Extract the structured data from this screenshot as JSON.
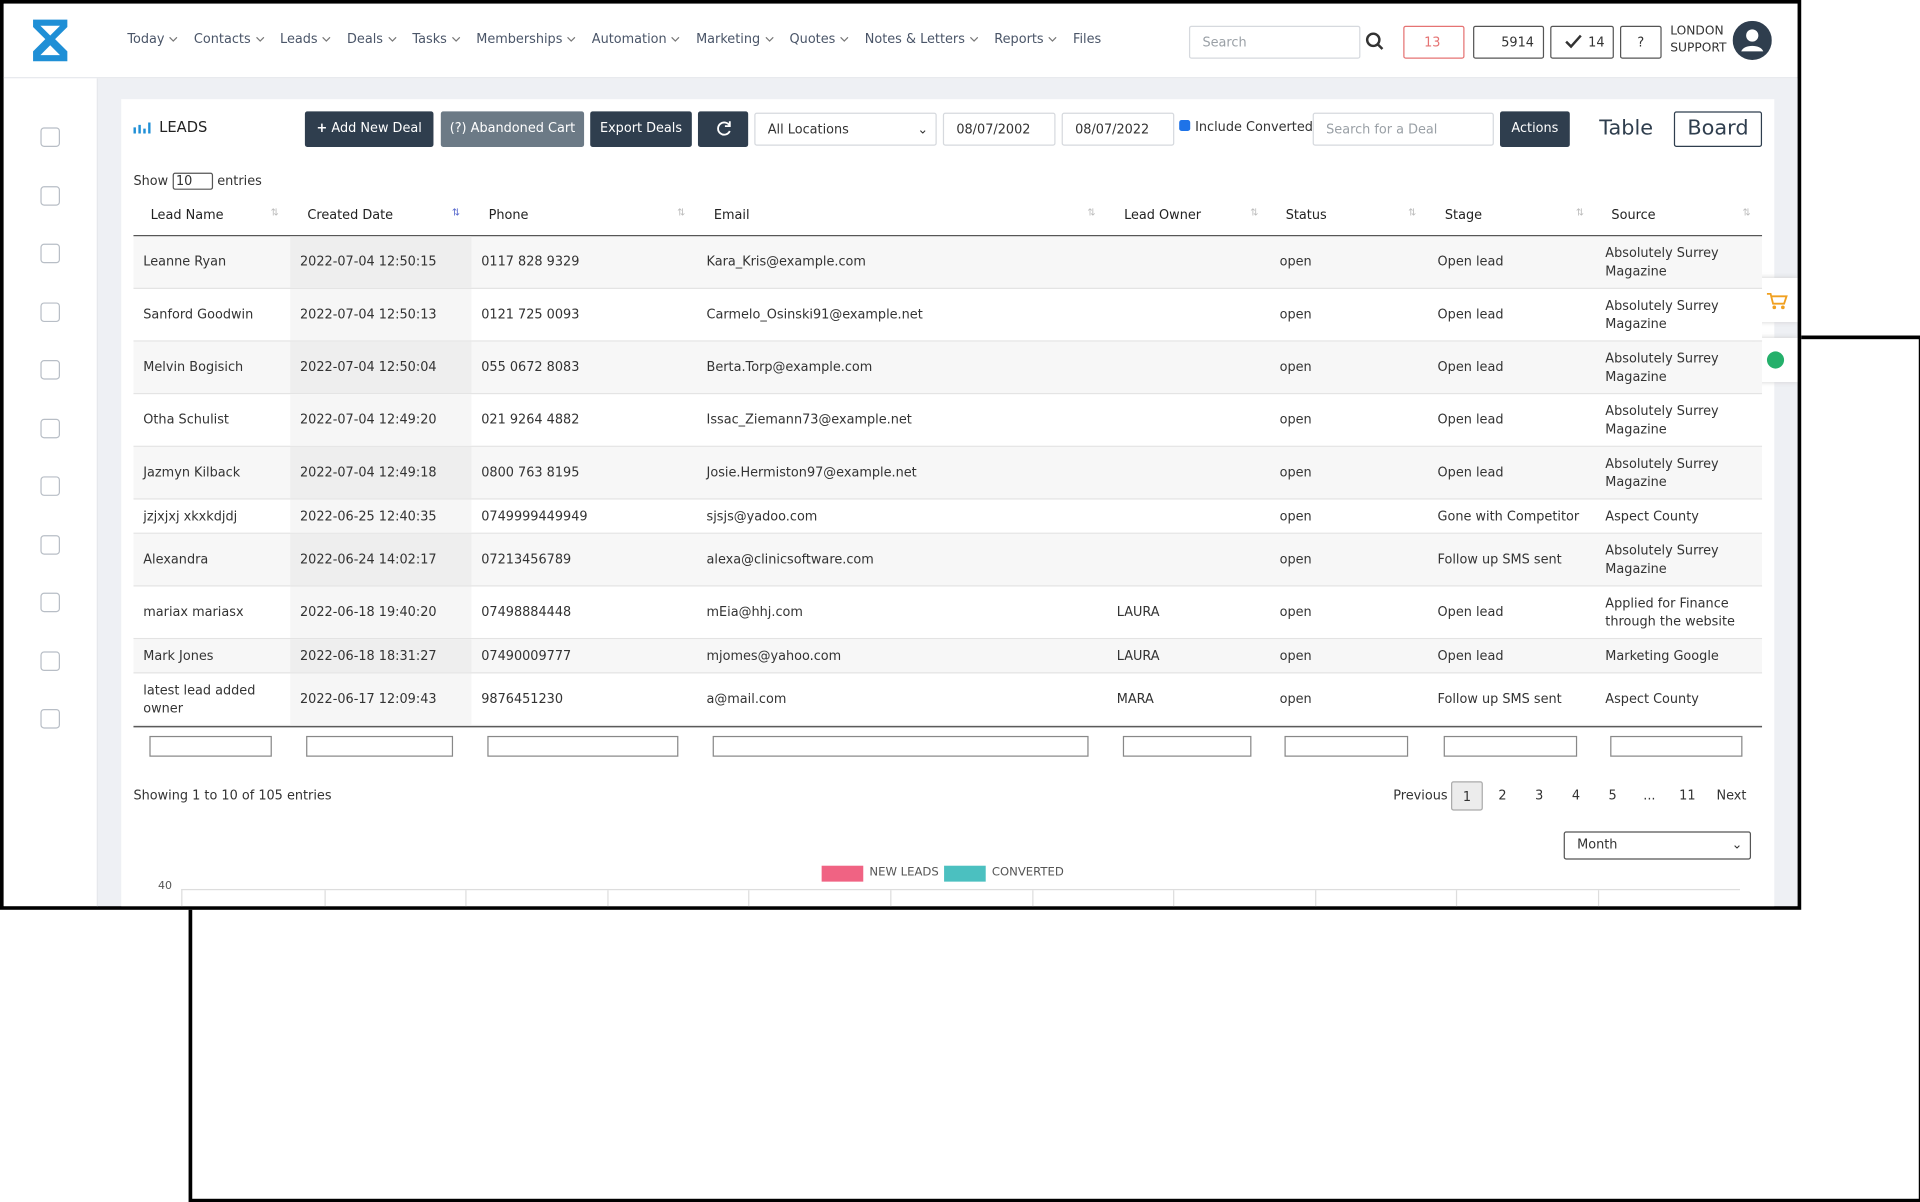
{
  "nav": {
    "items": [
      "Today",
      "Contacts",
      "Leads",
      "Deals",
      "Tasks",
      "Memberships",
      "Automation",
      "Marketing",
      "Quotes",
      "Notes & Letters",
      "Reports",
      "Files"
    ],
    "search_placeholder": "Search",
    "mail_count": "13",
    "phone_count": "5914",
    "check_count": "14",
    "user": [
      "LONDON",
      "SUPPORT"
    ]
  },
  "toolbar": {
    "title": "LEADS",
    "add": "Add New Deal",
    "abandoned": "(?) Abandoned Cart",
    "export": "Export Deals",
    "location": "All Locations",
    "date_from": "08/07/2002",
    "date_to": "08/07/2022",
    "include_converted": "Include Converted",
    "search_placeholder": "Search for a Deal",
    "actions": "Actions",
    "table": "Table",
    "board": "Board"
  },
  "table": {
    "show": "Show",
    "page_size": "10",
    "entries": "entries",
    "columns": [
      "Lead Name",
      "Created Date",
      "Phone",
      "Email",
      "Lead Owner",
      "Status",
      "Stage",
      "Source"
    ],
    "rows": [
      [
        "Leanne Ryan",
        "2022-07-04 12:50:15",
        "0117 828 9329",
        "Kara_Kris@example.com",
        null,
        "open",
        "Open lead",
        "Absolutely Surrey Magazine"
      ],
      [
        "Sanford Goodwin",
        "2022-07-04 12:50:13",
        "0121 725 0093",
        "Carmelo_Osinski91@example.net",
        null,
        "open",
        "Open lead",
        "Absolutely Surrey Magazine"
      ],
      [
        "Melvin Bogisich",
        "2022-07-04 12:50:04",
        "055 0672 8083",
        "Berta.Torp@example.com",
        null,
        "open",
        "Open lead",
        "Absolutely Surrey Magazine"
      ],
      [
        "Otha Schulist",
        "2022-07-04 12:49:20",
        "021 9264 4882",
        "Issac_Ziemann73@example.net",
        null,
        "open",
        "Open lead",
        "Absolutely Surrey Magazine"
      ],
      [
        "Jazmyn Kilback",
        "2022-07-04 12:49:18",
        "0800 763 8195",
        "Josie.Hermiston97@example.net",
        null,
        "open",
        "Open lead",
        "Absolutely Surrey Magazine"
      ],
      [
        "jzjxjxj xkxkdjdj",
        "2022-06-25 12:40:35",
        "0749999449949",
        "sjsjs@yadoo.com",
        null,
        "open",
        "Gone with Competitor",
        "Aspect County"
      ],
      [
        "Alexandra",
        "2022-06-24 14:02:17",
        "07213456789",
        "alexa@clinicsoftware.com",
        null,
        "open",
        "Follow up SMS sent",
        "Absolutely Surrey Magazine"
      ],
      [
        "mariax mariasx",
        "2022-06-18 19:40:20",
        "07498884448",
        "mEia@hhj.com",
        "LAURA",
        "open",
        "Open lead",
        "Applied for Finance through the website"
      ],
      [
        "Mark Jones",
        "2022-06-18 18:31:27",
        "07490009777",
        "mjomes@yahoo.com",
        "LAURA",
        "open",
        "Open lead",
        "Marketing Google"
      ],
      [
        "latest lead added owner",
        "2022-06-17 12:09:43",
        "9876451230",
        "a@mail.com",
        "MARA",
        "open",
        "Follow up SMS sent",
        "Aspect County"
      ]
    ]
  },
  "pagination": {
    "info": "Showing 1 to 10 of 105 entries",
    "previous": "Previous",
    "pages": [
      "1",
      "2",
      "3",
      "4",
      "5",
      "...",
      "11"
    ],
    "next": "Next"
  },
  "chart": {
    "period": "Month",
    "legend": [
      "NEW LEADS",
      "CONVERTED"
    ],
    "y_top": "40"
  }
}
